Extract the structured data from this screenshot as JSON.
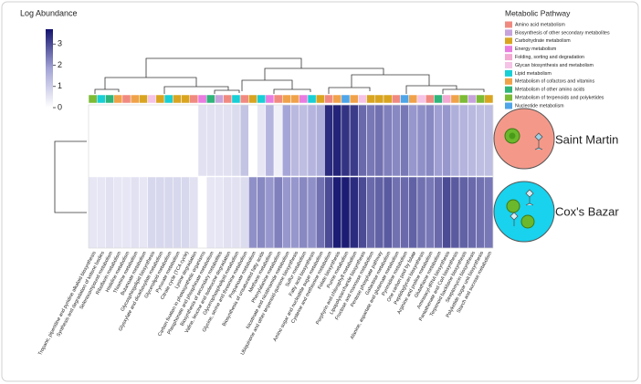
{
  "chart_data": {
    "type": "heatmap",
    "colorbar_title": "Log Abundance",
    "legend_title": "Metabolic Pathway",
    "zlim": [
      0,
      3.7
    ],
    "zticks": [
      0,
      1,
      2,
      3
    ],
    "colorscale": [
      "#ffffff",
      "#a3a3d6",
      "#14146e"
    ],
    "rows": [
      "Saint Martin",
      "Cox's Bazar"
    ],
    "legend": [
      {
        "name": "Amino acid metabolism",
        "color": "#f08a80"
      },
      {
        "name": "Biosynthesis of other secondary metabolites",
        "color": "#c7a3dc"
      },
      {
        "name": "Carbohydrate metabolism",
        "color": "#d9a521"
      },
      {
        "name": "Energy metabolism",
        "color": "#e87ce0"
      },
      {
        "name": "Folding, sorting and degradation",
        "color": "#f3a9d3"
      },
      {
        "name": "Glycan biosynthesis and metabolism",
        "color": "#f5c3e6"
      },
      {
        "name": "Lipid metabolism",
        "color": "#18cfd6"
      },
      {
        "name": "Metabolism of cofactors and vitamins",
        "color": "#f0a24a"
      },
      {
        "name": "Metabolism of other amino acids",
        "color": "#2fb57a"
      },
      {
        "name": "Metabolism of terpenoids and polyketides",
        "color": "#7cbb34"
      },
      {
        "name": "Nucleotide metabolism",
        "color": "#4ea5e8"
      }
    ],
    "categories": [
      "Tropane, piperidine and pyridine alkaloid biosynthesis",
      "Synthesis and degradation of ketone bodies",
      "Selenocompound metabolism",
      "Riboflavin metabolism",
      "Histidine metabolism",
      "Thiamine metabolism",
      "Butanoate metabolism",
      "Glycosphingolipid biosynthesis",
      "Glyoxylate and dicarboxylate metabolism",
      "Glycerolipid metabolism",
      "Pyruvate metabolism",
      "Citrate cycle (TCA cycle)",
      "Lysine degradation",
      "Carbon fixation in photosynthetic organisms",
      "Phosphonate and phosphinate metabolism",
      "Biosynthesis of secondary metabolites",
      "Valine, leucine and isoleucine degradation",
      "Glycerophospholipid metabolism",
      "Glycine, serine and threonine metabolism",
      "Propanoate metabolism",
      "Biosynthesis of unsaturated fatty acids",
      "Methane metabolism",
      "Phenylalanine metabolism",
      "Nicotinate and nicotinamide metabolism",
      "Ubiquinone and other terpenoid-quinone biosynthesis",
      "Sulfur metabolism",
      "Fatty acid biosynthesis",
      "Amino sugar and nucleotide sugar metabolism",
      "Cysteine and methionine metabolism",
      "Folate biosynthesis",
      "Purine metabolism",
      "Porphyrin and chlorophyll metabolism",
      "Lipopolysaccharide biosynthesis",
      "Fructose and mannose metabolism",
      "Pentose phosphate pathway",
      "Galactose metabolism",
      "Alanine, aspartate and glutamate metabolism",
      "Pyrimidine metabolism",
      "One carbon pool by folate",
      "Peptidoglycan biosynthesis",
      "Arginine and proline metabolism",
      "Glutathione metabolism",
      "Aminoacyl-tRNA biosynthesis",
      "Pantothenate and CoA biosynthesis",
      "Terpenoid backbone biosynthesis",
      "Streptomycin biosynthesis",
      "Polyketide sugar unit biosynthesis",
      "Starch and sucrose metabolism"
    ],
    "pathways": [
      "Metabolism of terpenoids and polyketides",
      "Lipid metabolism",
      "Metabolism of other amino acids",
      "Metabolism of cofactors and vitamins",
      "Amino acid metabolism",
      "Metabolism of cofactors and vitamins",
      "Carbohydrate metabolism",
      "Glycan biosynthesis and metabolism",
      "Carbohydrate metabolism",
      "Lipid metabolism",
      "Carbohydrate metabolism",
      "Carbohydrate metabolism",
      "Amino acid metabolism",
      "Energy metabolism",
      "Metabolism of other amino acids",
      "Biosynthesis of other secondary metabolites",
      "Amino acid metabolism",
      "Lipid metabolism",
      "Amino acid metabolism",
      "Carbohydrate metabolism",
      "Lipid metabolism",
      "Energy metabolism",
      "Amino acid metabolism",
      "Metabolism of cofactors and vitamins",
      "Metabolism of cofactors and vitamins",
      "Energy metabolism",
      "Lipid metabolism",
      "Carbohydrate metabolism",
      "Amino acid metabolism",
      "Metabolism of cofactors and vitamins",
      "Nucleotide metabolism",
      "Metabolism of cofactors and vitamins",
      "Glycan biosynthesis and metabolism",
      "Carbohydrate metabolism",
      "Carbohydrate metabolism",
      "Carbohydrate metabolism",
      "Amino acid metabolism",
      "Nucleotide metabolism",
      "Metabolism of cofactors and vitamins",
      "Glycan biosynthesis and metabolism",
      "Amino acid metabolism",
      "Metabolism of other amino acids",
      "Folding, sorting and degradation",
      "Metabolism of cofactors and vitamins",
      "Metabolism of terpenoids and polyketides",
      "Biosynthesis of other secondary metabolites",
      "Metabolism of terpenoids and polyketides",
      "Carbohydrate metabolism"
    ],
    "values": [
      [
        0,
        0,
        0,
        0,
        0,
        0,
        0,
        0,
        0,
        0,
        0,
        0,
        0,
        0.6,
        0.6,
        0.6,
        0.6,
        0.7,
        1.2,
        0,
        0.5,
        1.5,
        0.3,
        1.8,
        1.4,
        1.3,
        1.5,
        1.6,
        3.4,
        3.5,
        3.3,
        3.2,
        2.6,
        2.4,
        2.5,
        2.3,
        2.2,
        2.4,
        2.0,
        2.1,
        2.2,
        1.9,
        2.0,
        1.6,
        1.5,
        1.4,
        1.3,
        1.3
      ],
      [
        0.5,
        0.5,
        0.6,
        0.5,
        0.5,
        0.6,
        0.5,
        0.8,
        0.8,
        0.8,
        0.8,
        0.8,
        0.6,
        0,
        0.5,
        0.5,
        0.6,
        0.6,
        0.7,
        2.1,
        2.2,
        2.0,
        2.3,
        2.0,
        2.0,
        2.2,
        2.1,
        2.5,
        3.0,
        3.6,
        3.6,
        3.4,
        3.0,
        2.6,
        2.7,
        2.8,
        2.5,
        2.6,
        2.7,
        2.5,
        2.4,
        2.6,
        3.0,
        2.8,
        2.7,
        2.6,
        2.5,
        2.4
      ]
    ]
  }
}
